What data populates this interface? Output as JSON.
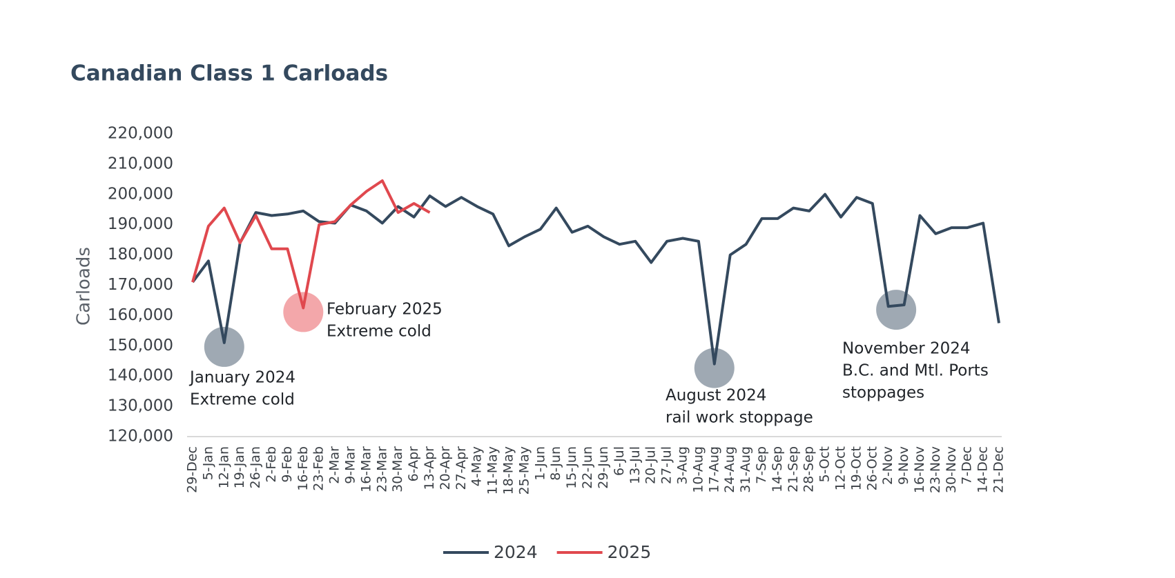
{
  "chart_data": {
    "type": "line",
    "title": "Canadian Class 1 Carloads",
    "y_label": "Carloads",
    "categories": [
      "29-Dec",
      "5-Jan",
      "12-Jan",
      "19-Jan",
      "26-Jan",
      "2-Feb",
      "9-Feb",
      "16-Feb",
      "23-Feb",
      "2-Mar",
      "9-Mar",
      "16-Mar",
      "23-Mar",
      "30-Mar",
      "6-Apr",
      "13-Apr",
      "20-Apr",
      "27-Apr",
      "4-May",
      "11-May",
      "18-May",
      "25-May",
      "1-Jun",
      "8-Jun",
      "15-Jun",
      "22-Jun",
      "29-Jun",
      "6-Jul",
      "13-Jul",
      "20-Jul",
      "27-Jul",
      "3-Aug",
      "10-Aug",
      "17-Aug",
      "24-Aug",
      "31-Aug",
      "7-Sep",
      "14-Sep",
      "21-Sep",
      "28-Sep",
      "5-Oct",
      "12-Oct",
      "19-Oct",
      "26-Oct",
      "2-Nov",
      "9-Nov",
      "16-Nov",
      "23-Nov",
      "30-Nov",
      "7-Dec",
      "14-Dec",
      "21-Dec"
    ],
    "series": [
      {
        "name": "2024",
        "color": "#34495e",
        "values": [
          171000,
          178000,
          151000,
          184000,
          194000,
          193000,
          193500,
          194500,
          191000,
          190500,
          196500,
          194500,
          190500,
          196000,
          192500,
          199500,
          196000,
          199000,
          196000,
          193500,
          183000,
          186000,
          188500,
          195500,
          187500,
          189500,
          186000,
          183500,
          184500,
          177500,
          184500,
          185500,
          184500,
          144000,
          180000,
          183500,
          192000,
          192000,
          195500,
          194500,
          200000,
          192500,
          199000,
          197000,
          163000,
          163500,
          193000,
          187000,
          189000,
          189000,
          190500,
          157500
        ]
      },
      {
        "name": "2025",
        "color": "#e0484e",
        "values": [
          171000,
          189500,
          195500,
          184000,
          193000,
          182000,
          182000,
          162500,
          190000,
          191000,
          196500,
          201000,
          204500,
          194000,
          197000,
          194000,
          null,
          null,
          null,
          null,
          null,
          null,
          null,
          null,
          null,
          null,
          null,
          null,
          null,
          null,
          null,
          null,
          null,
          null,
          null,
          null,
          null,
          null,
          null,
          null,
          null,
          null,
          null,
          null,
          null,
          null,
          null,
          null,
          null,
          null,
          null,
          null
        ]
      }
    ],
    "ylim": [
      120000,
      220000
    ],
    "yticks": [
      {
        "value": 120000,
        "label": "120,000"
      },
      {
        "value": 130000,
        "label": "130,000"
      },
      {
        "value": 140000,
        "label": "140,000"
      },
      {
        "value": 150000,
        "label": "150,000"
      },
      {
        "value": 160000,
        "label": "160,000"
      },
      {
        "value": 170000,
        "label": "170,000"
      },
      {
        "value": 180000,
        "label": "180,000"
      },
      {
        "value": 190000,
        "label": "190,000"
      },
      {
        "value": 200000,
        "label": "200,000"
      },
      {
        "value": 210000,
        "label": "210,000"
      },
      {
        "value": 220000,
        "label": "220,000"
      }
    ],
    "grid": false,
    "legend": "bottom",
    "annotations": [
      {
        "lines": [
          "January 2024",
          "Extreme cold"
        ]
      },
      {
        "lines": [
          "February 2025",
          "Extreme cold"
        ]
      },
      {
        "lines": [
          "August 2024",
          "rail work stoppage"
        ]
      },
      {
        "lines": [
          "November 2024",
          "B.C. and Mtl. Ports",
          "stoppages"
        ]
      }
    ]
  }
}
